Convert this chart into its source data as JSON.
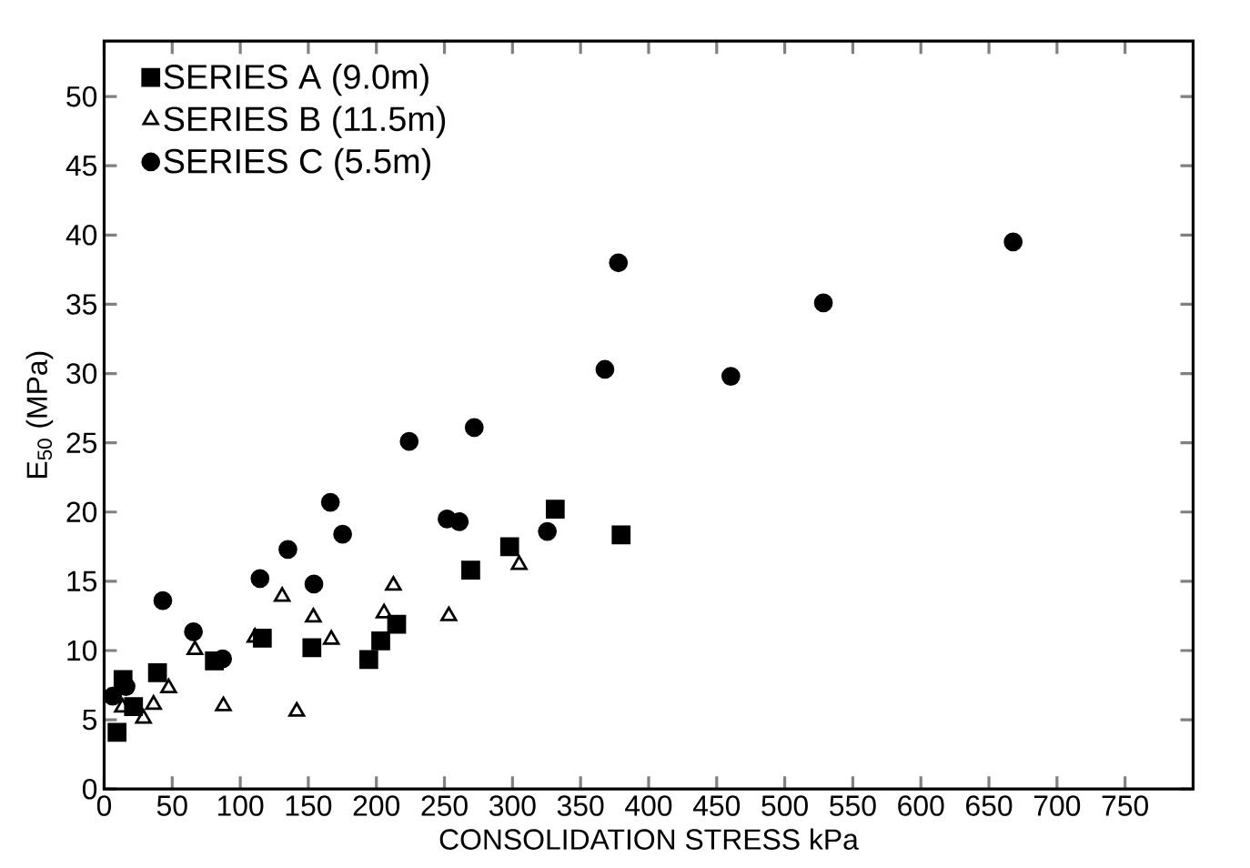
{
  "chart_data": {
    "type": "scatter",
    "xlabel": "CONSOLIDATION STRESS kPa",
    "ylabel": "E$_{50}$ (MPa)",
    "xlim": [
      0,
      800
    ],
    "ylim": [
      0,
      54
    ],
    "xticks": [
      0,
      50,
      100,
      150,
      200,
      250,
      300,
      350,
      400,
      450,
      500,
      550,
      600,
      650,
      700,
      750
    ],
    "yticks": [
      0,
      5,
      10,
      15,
      20,
      25,
      30,
      35,
      40,
      45,
      50
    ],
    "grid": false,
    "legend": "top left",
    "series": [
      {
        "name": "SERIES A (9.0m)",
        "color": "#000000",
        "marker": "square",
        "x": [
          9.5,
          13.9,
          21.6,
          39.2,
          81,
          116.2,
          152.6,
          194.4,
          203.2,
          214.9,
          269.3,
          297.9,
          331.4,
          379.8
        ],
        "values": [
          4.1,
          7.9,
          5.95,
          8.4,
          9.25,
          10.9,
          10.2,
          9.35,
          10.7,
          11.9,
          15.8,
          17.5,
          20.2,
          18.35
        ]
      },
      {
        "name": "SERIES B (11.5m)",
        "color": "#000000",
        "marker": "triangle",
        "x": [
          13.4,
          28.9,
          36.3,
          47.4,
          66.7,
          87.6,
          110.8,
          130.8,
          141.5,
          153.7,
          166.9,
          205.6,
          212.5,
          253.2,
          304.9
        ],
        "values": [
          5.9,
          5.1,
          6.1,
          7.3,
          10.05,
          6.0,
          10.95,
          13.9,
          5.6,
          12.4,
          10.8,
          12.7,
          14.7,
          12.5,
          16.2
        ]
      },
      {
        "name": "SERIES C (5.5m)",
        "color": "#000000",
        "marker": "circle",
        "x": [
          6.2,
          16.1,
          43.1,
          65.6,
          87,
          114.5,
          135,
          154.1,
          166.2,
          175.2,
          224.1,
          251.9,
          260.9,
          271.9,
          325.6,
          367.9,
          377.8,
          460.4,
          528.4,
          667.8
        ],
        "values": [
          6.7,
          7.4,
          13.6,
          11.35,
          9.4,
          15.2,
          17.3,
          14.8,
          20.7,
          18.4,
          25.1,
          19.5,
          19.3,
          26.1,
          18.6,
          30.3,
          38.0,
          29.8,
          35.1,
          39.5
        ]
      }
    ]
  }
}
